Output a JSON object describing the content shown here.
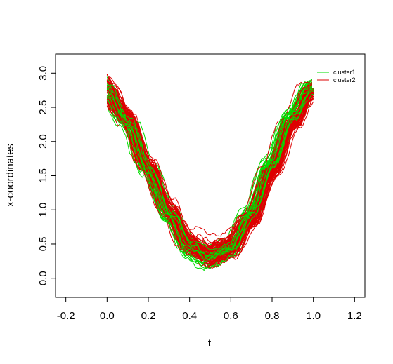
{
  "chart_data": {
    "type": "line",
    "xlabel": "t",
    "ylabel": "x-coordinates",
    "xlim": [
      -0.25,
      1.25
    ],
    "ylim": [
      -0.28,
      3.28
    ],
    "xticks": [
      -0.2,
      0.0,
      0.2,
      0.4,
      0.6,
      0.8,
      1.0,
      1.2
    ],
    "xtick_labels": [
      "-0.2",
      "0.0",
      "0.2",
      "0.4",
      "0.6",
      "0.8",
      "1.0",
      "1.2"
    ],
    "yticks": [
      0.0,
      0.5,
      1.0,
      1.5,
      2.0,
      2.5,
      3.0
    ],
    "ytick_labels": [
      "0.0",
      "0.5",
      "1.0",
      "1.5",
      "2.0",
      "2.5",
      "3.0"
    ],
    "legend_position": "top-right",
    "series": [
      {
        "name": "cluster1",
        "color": "#00dd00",
        "curve_count": 40,
        "x": [
          0.0,
          0.1,
          0.2,
          0.3,
          0.4,
          0.5,
          0.6,
          0.7,
          0.8,
          0.9,
          1.0
        ],
        "y_mean": [
          2.75,
          2.3,
          1.6,
          0.95,
          0.45,
          0.3,
          0.45,
          0.95,
          1.7,
          2.4,
          2.8
        ]
      },
      {
        "name": "cluster2",
        "color": "#dd0000",
        "curve_count": 60,
        "x": [
          0.0,
          0.1,
          0.2,
          0.3,
          0.4,
          0.5,
          0.6,
          0.7,
          0.8,
          0.9,
          1.0
        ],
        "y_mean": [
          2.75,
          2.35,
          1.65,
          1.0,
          0.5,
          0.35,
          0.45,
          0.85,
          1.55,
          2.25,
          2.75
        ]
      }
    ]
  }
}
